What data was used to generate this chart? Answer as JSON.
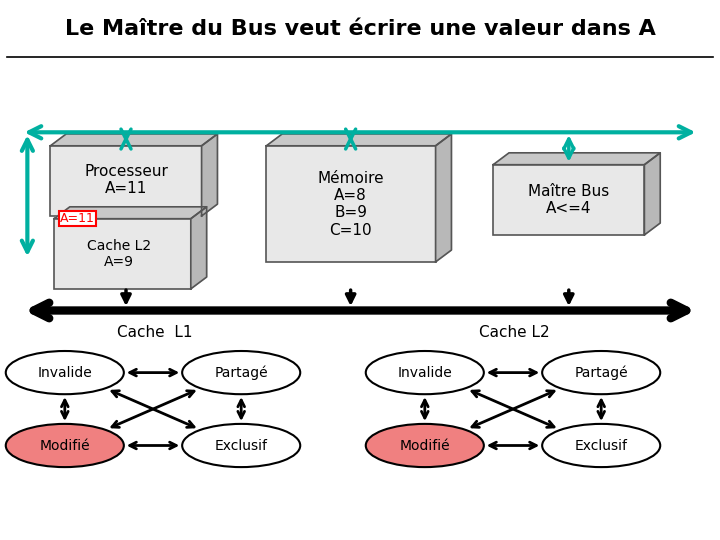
{
  "title": "Le Maître du Bus veut écrire une valeur dans A",
  "title_fontsize": 16,
  "bg_color": "#ffffff",
  "teal": "#00b0a0",
  "black": "#000000",
  "red_fill": "#f08080",
  "processeur_label": "Processeur\nA=11",
  "memoire_label": "Mémoire\nA=8\nB=9\nC=10",
  "maitre_label": "Maître Bus\nA<=4",
  "cache_label": "Cache L2\nA=9",
  "cache_tag": "A=11",
  "cache_L1_title": "Cache  L1",
  "cache_L2_title": "Cache L2"
}
